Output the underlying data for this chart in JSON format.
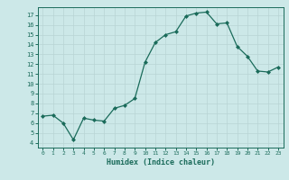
{
  "x": [
    0,
    1,
    2,
    3,
    4,
    5,
    6,
    7,
    8,
    9,
    10,
    11,
    12,
    13,
    14,
    15,
    16,
    17,
    18,
    19,
    20,
    21,
    22,
    23
  ],
  "y": [
    6.7,
    6.8,
    6.0,
    4.3,
    6.5,
    6.3,
    6.2,
    7.5,
    7.8,
    8.5,
    12.2,
    14.2,
    15.0,
    15.3,
    16.9,
    17.2,
    17.3,
    16.1,
    16.2,
    13.8,
    12.8,
    11.3,
    11.2,
    11.7
  ],
  "line_color": "#1a6b5a",
  "marker_color": "#1a6b5a",
  "bg_color": "#cce8e8",
  "grid_color": "#b8d4d4",
  "xlabel": "Humidex (Indice chaleur)",
  "xlim": [
    -0.5,
    23.5
  ],
  "ylim": [
    3.5,
    17.8
  ],
  "yticks": [
    4,
    5,
    6,
    7,
    8,
    9,
    10,
    11,
    12,
    13,
    14,
    15,
    16,
    17
  ],
  "xticks": [
    0,
    1,
    2,
    3,
    4,
    5,
    6,
    7,
    8,
    9,
    10,
    11,
    12,
    13,
    14,
    15,
    16,
    17,
    18,
    19,
    20,
    21,
    22,
    23
  ]
}
